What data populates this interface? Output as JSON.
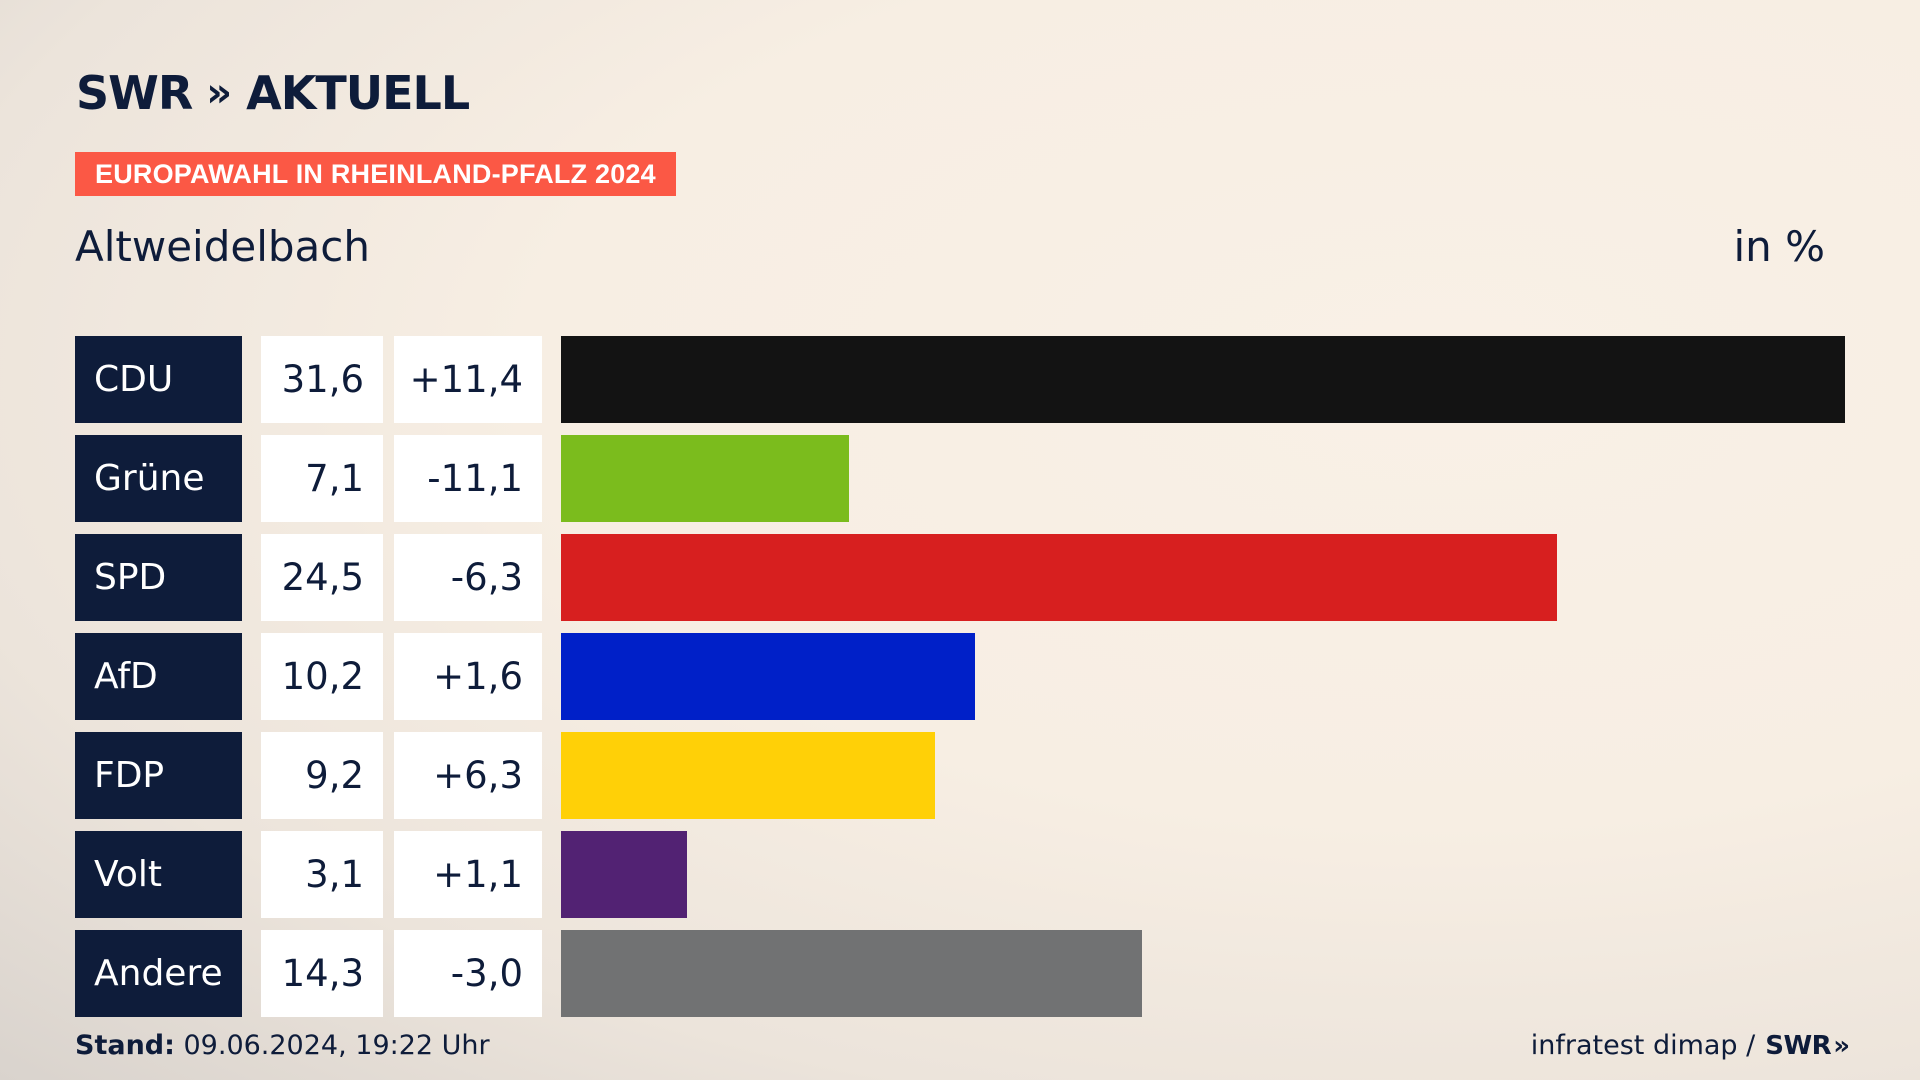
{
  "brand": {
    "name": "SWR",
    "chevrons": "»",
    "product": "AKTUELL"
  },
  "tag": "EUROPAWAHL IN RHEINLAND-PFALZ 2024",
  "place": "Altweidelbach",
  "unit": "in %",
  "chart_data": {
    "type": "bar",
    "orientation": "horizontal",
    "categories": [
      "CDU",
      "Grüne",
      "SPD",
      "AfD",
      "FDP",
      "Volt",
      "Andere"
    ],
    "values": [
      31.6,
      7.1,
      24.5,
      10.2,
      9.2,
      3.1,
      14.3
    ],
    "value_labels": [
      "31,6",
      "7,1",
      "24,5",
      "10,2",
      "9,2",
      "3,1",
      "14,3"
    ],
    "diff_labels": [
      "+11,4",
      "-11,1",
      "-6,3",
      "+1,6",
      "+6,3",
      "+1,1",
      "-3,0"
    ],
    "colors": [
      "#131313",
      "#7bbc1d",
      "#d71f1f",
      "#0020c8",
      "#ffd007",
      "#522273",
      "#717273"
    ],
    "xlim": [
      0,
      31.6
    ],
    "grid": false,
    "legend": "none"
  },
  "footer": {
    "stand_label": "Stand:",
    "stand_value": " 09.06.2024, 19:22 Uhr",
    "source": "infratest dimap /",
    "source_brand": "SWR",
    "source_chevrons": "»"
  }
}
